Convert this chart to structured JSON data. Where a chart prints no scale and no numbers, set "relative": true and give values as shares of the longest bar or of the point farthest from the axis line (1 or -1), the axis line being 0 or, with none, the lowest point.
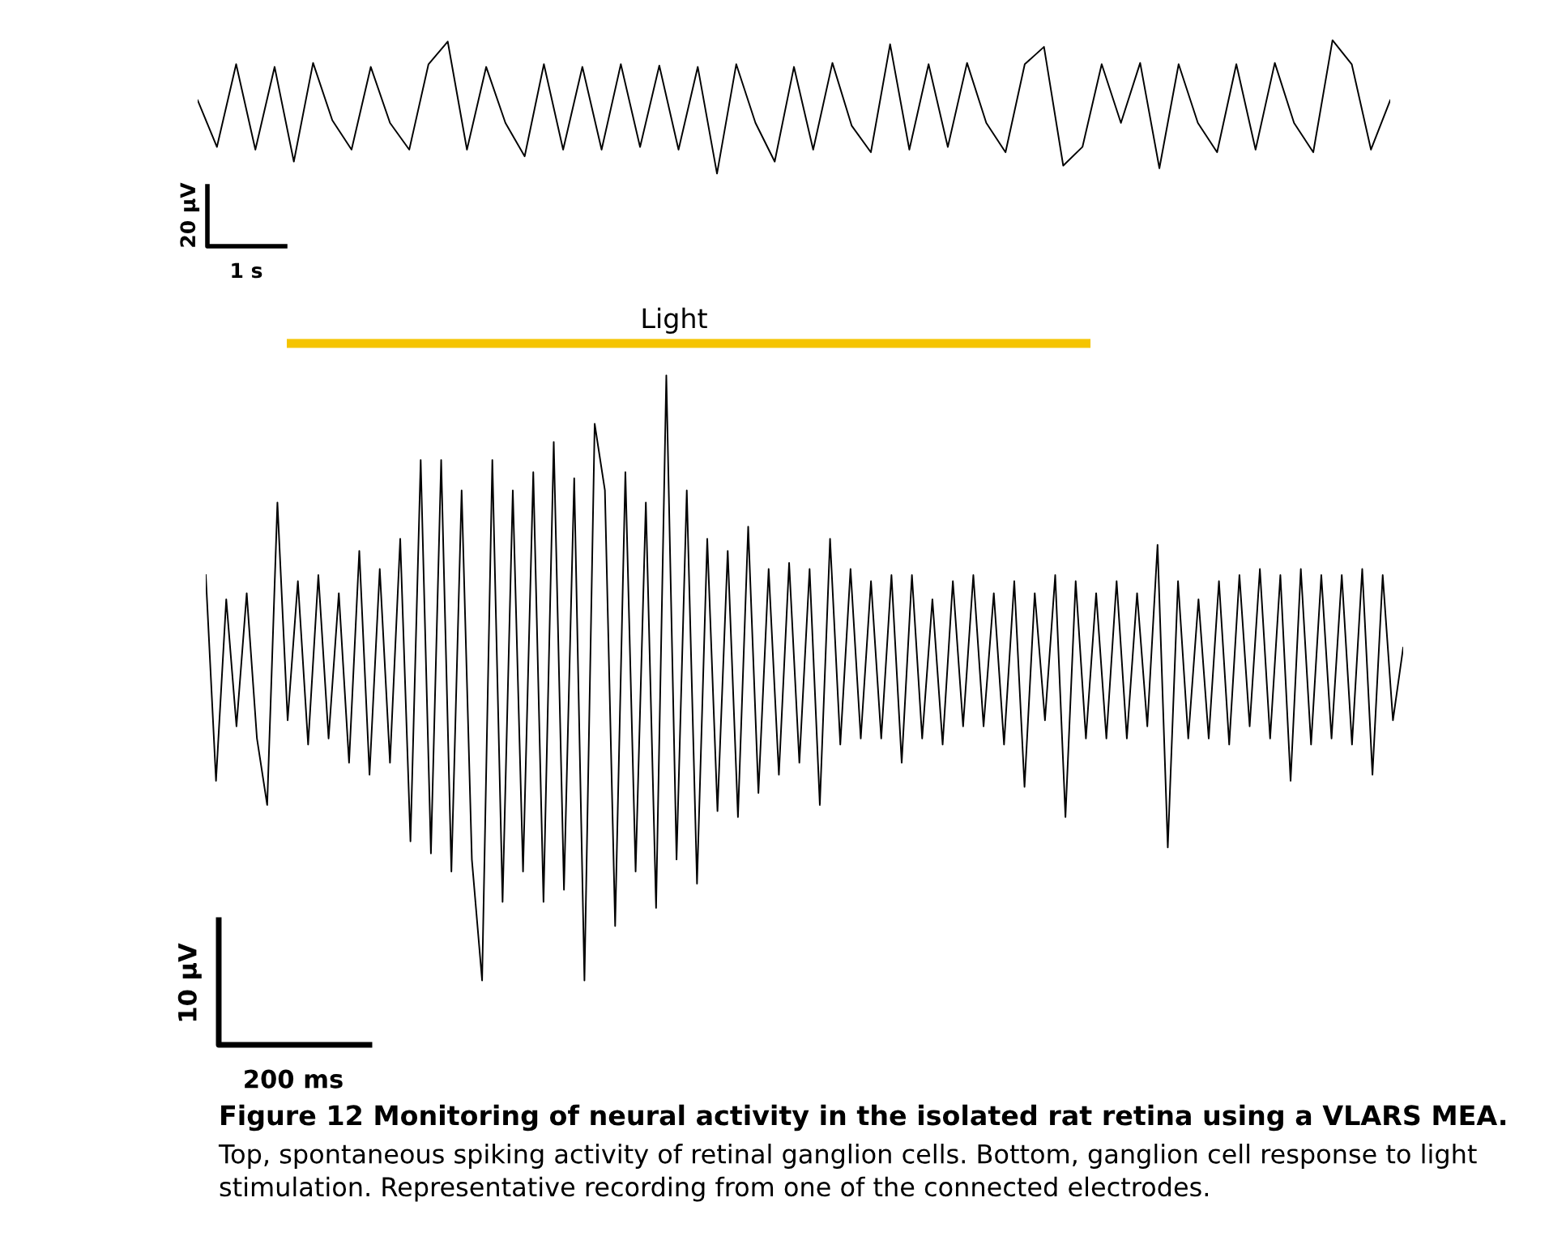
{
  "chart_data": [
    {
      "type": "line",
      "relative": true,
      "tick_labels": false,
      "annotations": [
        "20 µV",
        "1 s"
      ],
      "categories": [
        null,
        null,
        null,
        null,
        null,
        null,
        null,
        null,
        null,
        null,
        null,
        null,
        null,
        null,
        null,
        null,
        null,
        null,
        null,
        null,
        null,
        null,
        null,
        null,
        null,
        null,
        null,
        null,
        null,
        null,
        null,
        null,
        null,
        null,
        null,
        null,
        null,
        null,
        null,
        null,
        null,
        null,
        null,
        null,
        null,
        null,
        null,
        null,
        null,
        null,
        null,
        null,
        null,
        null,
        null,
        null,
        null,
        null,
        null,
        null,
        null,
        null,
        null
      ],
      "series": [
        {
          "color": "#000000",
          "values": [
            0.55,
            0.2,
            0.82,
            0.18,
            0.8,
            0.09,
            0.83,
            0.4,
            0.18,
            0.8,
            0.38,
            0.18,
            0.82,
            0.99,
            0.18,
            0.8,
            0.38,
            0.13,
            0.82,
            0.18,
            0.8,
            0.18,
            0.82,
            0.2,
            0.81,
            0.18,
            0.8,
            0.0,
            0.82,
            0.38,
            0.09,
            0.8,
            0.18,
            0.83,
            0.36,
            0.16,
            0.97,
            0.18,
            0.82,
            0.2,
            0.83,
            0.38,
            0.16,
            0.82,
            0.95,
            0.06,
            0.2,
            0.82,
            0.38,
            0.83,
            0.04,
            0.82,
            0.38,
            0.16,
            0.82,
            0.18,
            0.83,
            0.38,
            0.16,
            1.0,
            0.82,
            0.18,
            0.55
          ]
        }
      ]
    },
    {
      "type": "line",
      "relative": true,
      "tick_labels": false,
      "title": "Figure 12 Monitoring of neural activity in the isolated rat retina using a VLARS MEA.",
      "subtitle": "Top, spontaneous spiking activity of retinal ganglion cells. Bottom, ganglion cell response to light stimulation. Representative recording from one of the connected electrodes.",
      "annotations": [
        "10 µV",
        "200 ms",
        "Light"
      ],
      "categories": [
        null,
        null,
        null,
        null,
        null,
        null,
        null,
        null,
        null,
        null,
        null,
        null,
        null,
        null,
        null,
        null,
        null,
        null,
        null,
        null,
        null,
        null,
        null,
        null,
        null,
        null,
        null,
        null,
        null,
        null,
        null,
        null,
        null,
        null,
        null,
        null,
        null,
        null,
        null,
        null,
        null,
        null,
        null,
        null,
        null,
        null,
        null,
        null,
        null,
        null,
        null,
        null,
        null,
        null,
        null,
        null,
        null,
        null,
        null,
        null,
        null,
        null,
        null,
        null,
        null,
        null,
        null,
        null,
        null,
        null,
        null,
        null,
        null,
        null,
        null,
        null,
        null,
        null,
        null,
        null,
        null,
        null,
        null,
        null,
        null,
        null,
        null,
        null,
        null,
        null,
        null,
        null,
        null,
        null,
        null,
        null,
        null,
        null,
        null,
        null,
        null,
        null,
        null,
        null,
        null,
        null,
        null,
        null,
        null,
        null,
        null,
        null,
        null,
        null,
        null,
        null,
        null,
        null
      ],
      "series": [
        {
          "color": "#000000",
          "values": [
            0.67,
            0.33,
            0.63,
            0.42,
            0.64,
            0.4,
            0.29,
            0.79,
            0.43,
            0.66,
            0.39,
            0.67,
            0.4,
            0.64,
            0.36,
            0.71,
            0.34,
            0.68,
            0.36,
            0.73,
            0.23,
            0.86,
            0.21,
            0.86,
            0.18,
            0.81,
            0.2,
            0.0,
            0.86,
            0.13,
            0.81,
            0.18,
            0.84,
            0.13,
            0.89,
            0.15,
            0.83,
            0.0,
            0.92,
            0.81,
            0.09,
            0.84,
            0.18,
            0.79,
            0.12,
            1.0,
            0.2,
            0.81,
            0.16,
            0.73,
            0.28,
            0.71,
            0.27,
            0.75,
            0.31,
            0.68,
            0.34,
            0.69,
            0.36,
            0.68,
            0.29,
            0.73,
            0.39,
            0.68,
            0.4,
            0.66,
            0.4,
            0.67,
            0.36,
            0.67,
            0.4,
            0.63,
            0.39,
            0.66,
            0.42,
            0.67,
            0.42,
            0.64,
            0.39,
            0.66,
            0.32,
            0.64,
            0.43,
            0.67,
            0.27,
            0.66,
            0.4,
            0.64,
            0.4,
            0.66,
            0.4,
            0.64,
            0.42,
            0.72,
            0.22,
            0.66,
            0.4,
            0.63,
            0.4,
            0.66,
            0.39,
            0.67,
            0.42,
            0.68,
            0.4,
            0.67,
            0.33,
            0.68,
            0.39,
            0.67,
            0.4,
            0.67,
            0.39,
            0.68,
            0.34,
            0.67,
            0.43,
            0.55
          ]
        }
      ]
    }
  ]
}
